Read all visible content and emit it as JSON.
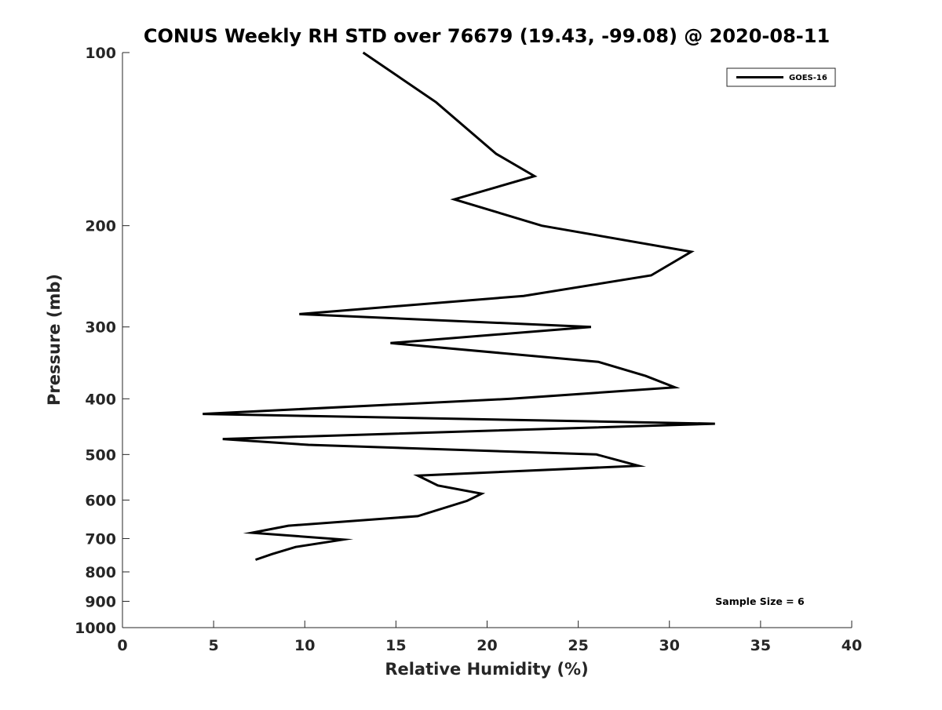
{
  "chart_data": {
    "type": "line",
    "title": "CONUS Weekly RH STD over 76679 (19.43, -99.08) @ 2020-08-11",
    "xlabel": "Relative Humidity (%)",
    "ylabel": "Pressure (mb)",
    "xlim": [
      0,
      40
    ],
    "ylim": [
      100,
      1000
    ],
    "y_scale": "log",
    "y_reversed": true,
    "grid": false,
    "legend_position": "top-right",
    "x_ticks": [
      0,
      5,
      10,
      15,
      20,
      25,
      30,
      35,
      40
    ],
    "y_ticks": [
      100,
      200,
      300,
      400,
      500,
      600,
      700,
      800,
      900,
      1000
    ],
    "annotation": "Sample Size = 6",
    "series": [
      {
        "name": "GOES-16",
        "color": "#000000",
        "x": [
          13.2,
          17.2,
          20.5,
          22.6,
          18.2,
          23.0,
          31.2,
          29.0,
          22.0,
          9.7,
          25.7,
          14.7,
          26.1,
          28.7,
          30.3,
          21.3,
          4.4,
          32.5,
          5.5,
          10.2,
          26.0,
          28.3,
          16.2,
          17.3,
          19.7,
          18.9,
          16.2,
          9.1,
          7.1,
          12.1,
          9.5,
          8.2,
          7.3
        ],
        "y": [
          100,
          122,
          150,
          164,
          180,
          200,
          222,
          244,
          265,
          285,
          300,
          320,
          345,
          365,
          382,
          400,
          425,
          442,
          470,
          481,
          500,
          523,
          544,
          566,
          585,
          602,
          640,
          665,
          684,
          703,
          724,
          745,
          762
        ]
      }
    ]
  }
}
